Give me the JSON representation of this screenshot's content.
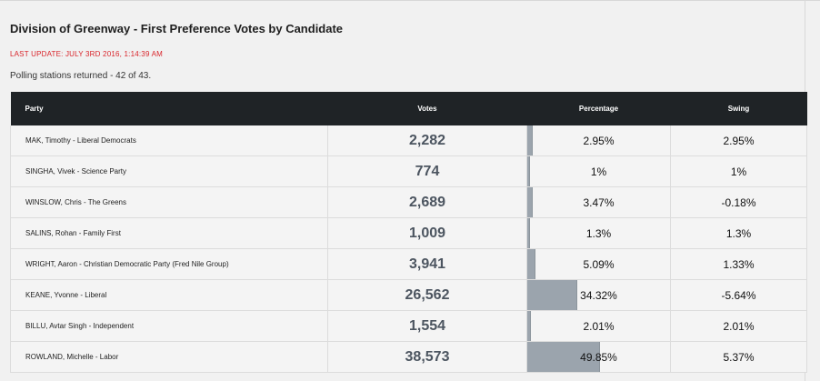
{
  "header": {
    "title": "Division of Greenway - First Preference Votes by Candidate",
    "last_update": "LAST UPDATE: JULY 3RD 2016, 1:14:39 AM",
    "polling": "Polling stations returned - 42 of 43."
  },
  "table": {
    "columns": [
      "Party",
      "Votes",
      "Percentage",
      "Swing"
    ],
    "rows": [
      {
        "party": "MAK, Timothy - Liberal Democrats",
        "votes": "2,282",
        "percentage": "2.95%",
        "pct_value": 2.95,
        "swing": "2.95%"
      },
      {
        "party": "SINGHA, Vivek - Science Party",
        "votes": "774",
        "percentage": "1%",
        "pct_value": 1,
        "swing": "1%"
      },
      {
        "party": "WINSLOW, Chris - The Greens",
        "votes": "2,689",
        "percentage": "3.47%",
        "pct_value": 3.47,
        "swing": "-0.18%"
      },
      {
        "party": "SALINS, Rohan - Family First",
        "votes": "1,009",
        "percentage": "1.3%",
        "pct_value": 1.3,
        "swing": "1.3%"
      },
      {
        "party": "WRIGHT, Aaron - Christian Democratic Party (Fred Nile Group)",
        "votes": "3,941",
        "percentage": "5.09%",
        "pct_value": 5.09,
        "swing": "1.33%"
      },
      {
        "party": "KEANE, Yvonne - Liberal",
        "votes": "26,562",
        "percentage": "34.32%",
        "pct_value": 34.32,
        "swing": "-5.64%"
      },
      {
        "party": "BILLU, Avtar Singh - Independent",
        "votes": "1,554",
        "percentage": "2.01%",
        "pct_value": 2.01,
        "swing": "2.01%"
      },
      {
        "party": "ROWLAND, Michelle - Labor",
        "votes": "38,573",
        "percentage": "49.85%",
        "pct_value": 49.85,
        "swing": "5.37%"
      }
    ]
  },
  "colors": {
    "header_bg": "#1f2326",
    "bar": "#9ba4ad",
    "update_text": "#d9252b"
  }
}
